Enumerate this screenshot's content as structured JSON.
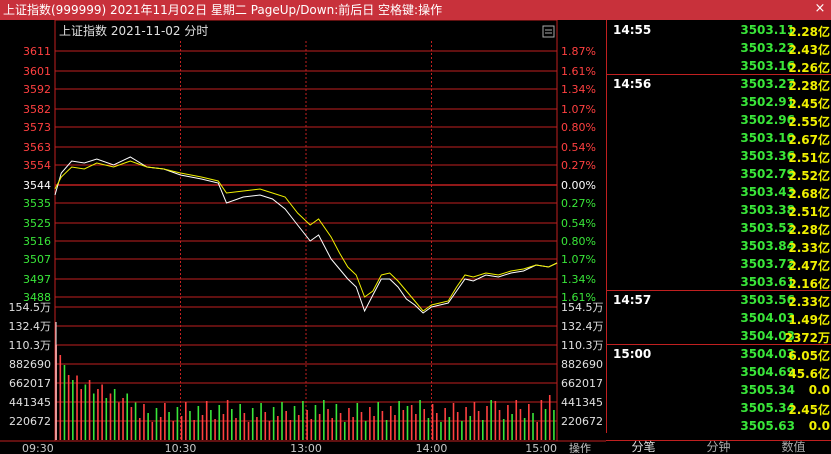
{
  "window": {
    "title": "上证指数(999999) 2021年11月02日 星期二 PageUp/Down:前后日 空格键:操作",
    "close": "×"
  },
  "chart": {
    "info": "上证指数   2021-11-02 分时"
  },
  "chart_data": {
    "type": "line",
    "title": "上证指数   2021-11-02 分时",
    "base_price": 3544,
    "price_ticks": [
      "3611",
      "3601",
      "3592",
      "3582",
      "3573",
      "3563",
      "3554",
      "3544",
      "3535",
      "3525",
      "3516",
      "3507",
      "3497",
      "3488"
    ],
    "price_tick_values": [
      3611,
      3601,
      3592,
      3582,
      3573,
      3563,
      3554,
      3544,
      3535,
      3525,
      3516,
      3507,
      3497,
      3488
    ],
    "pct_ticks": [
      "1.87%",
      "1.61%",
      "1.34%",
      "1.07%",
      "0.80%",
      "0.54%",
      "0.27%",
      "0.00%",
      "0.27%",
      "0.54%",
      "0.80%",
      "1.07%",
      "1.34%",
      "1.61%"
    ],
    "ylim": [
      3483,
      3616
    ],
    "volume_ticks": [
      "154.5万",
      "132.4万",
      "110.3万",
      "882690",
      "662017",
      "441345",
      "220672"
    ],
    "volume_ylim": [
      0,
      1545000
    ],
    "x_labels": [
      "09:30",
      "10:30",
      "13:00",
      "14:00",
      "15:00"
    ],
    "total_minutes": 240,
    "series": [
      {
        "name": "",
        "color": "#ffffff",
        "points": [
          [
            0,
            3539
          ],
          [
            3,
            3550
          ],
          [
            8,
            3556
          ],
          [
            14,
            3555
          ],
          [
            20,
            3557
          ],
          [
            28,
            3554
          ],
          [
            36,
            3558
          ],
          [
            44,
            3553
          ],
          [
            52,
            3552
          ],
          [
            60,
            3549
          ],
          [
            70,
            3547
          ],
          [
            78,
            3545
          ],
          [
            82,
            3535
          ],
          [
            90,
            3538
          ],
          [
            98,
            3539
          ],
          [
            104,
            3537
          ],
          [
            110,
            3532
          ],
          [
            116,
            3524
          ],
          [
            122,
            3516
          ],
          [
            126,
            3519
          ],
          [
            132,
            3507
          ],
          [
            136,
            3502
          ],
          [
            140,
            3497
          ],
          [
            144,
            3493
          ],
          [
            148,
            3481
          ],
          [
            152,
            3489
          ],
          [
            156,
            3497
          ],
          [
            160,
            3497
          ],
          [
            164,
            3493
          ],
          [
            168,
            3487
          ],
          [
            172,
            3484
          ],
          [
            176,
            3480
          ],
          [
            180,
            3483
          ],
          [
            184,
            3484
          ],
          [
            188,
            3485
          ],
          [
            192,
            3491
          ],
          [
            196,
            3497
          ],
          [
            200,
            3496
          ],
          [
            206,
            3499
          ],
          [
            212,
            3498
          ],
          [
            218,
            3500
          ],
          [
            224,
            3501
          ],
          [
            230,
            3504
          ],
          [
            236,
            3503
          ],
          [
            240,
            3505
          ]
        ]
      },
      {
        "name": "",
        "color": "#f0f000",
        "points": [
          [
            0,
            3542
          ],
          [
            3,
            3548
          ],
          [
            8,
            3553
          ],
          [
            14,
            3552
          ],
          [
            20,
            3555
          ],
          [
            28,
            3553
          ],
          [
            36,
            3556
          ],
          [
            44,
            3553
          ],
          [
            52,
            3552
          ],
          [
            60,
            3550
          ],
          [
            70,
            3548
          ],
          [
            78,
            3546
          ],
          [
            82,
            3540
          ],
          [
            90,
            3541
          ],
          [
            98,
            3542
          ],
          [
            104,
            3540
          ],
          [
            110,
            3538
          ],
          [
            116,
            3530
          ],
          [
            122,
            3524
          ],
          [
            126,
            3527
          ],
          [
            132,
            3518
          ],
          [
            136,
            3510
          ],
          [
            140,
            3503
          ],
          [
            144,
            3499
          ],
          [
            148,
            3488
          ],
          [
            152,
            3491
          ],
          [
            156,
            3499
          ],
          [
            160,
            3500
          ],
          [
            164,
            3496
          ],
          [
            168,
            3491
          ],
          [
            172,
            3486
          ],
          [
            176,
            3481
          ],
          [
            180,
            3484
          ],
          [
            184,
            3485
          ],
          [
            188,
            3486
          ],
          [
            192,
            3493
          ],
          [
            196,
            3499
          ],
          [
            200,
            3498
          ],
          [
            206,
            3500
          ],
          [
            212,
            3499
          ],
          [
            218,
            3501
          ],
          [
            224,
            3502
          ],
          [
            230,
            3504
          ],
          [
            236,
            3503
          ],
          [
            240,
            3505
          ]
        ]
      }
    ]
  },
  "ticks": [
    {
      "time": "14:55",
      "price": "3503.11",
      "vol": "2.28亿"
    },
    {
      "time": "",
      "price": "3503.22",
      "vol": "2.43亿"
    },
    {
      "time": "",
      "price": "3503.16",
      "vol": "2.26亿"
    },
    {
      "time": "14:56",
      "price": "3503.27",
      "vol": "2.28亿"
    },
    {
      "time": "",
      "price": "3502.91",
      "vol": "2.45亿"
    },
    {
      "time": "",
      "price": "3502.96",
      "vol": "2.55亿"
    },
    {
      "time": "",
      "price": "3503.10",
      "vol": "2.67亿"
    },
    {
      "time": "",
      "price": "3503.36",
      "vol": "2.51亿"
    },
    {
      "time": "",
      "price": "3502.79",
      "vol": "2.52亿"
    },
    {
      "time": "",
      "price": "3503.43",
      "vol": "2.68亿"
    },
    {
      "time": "",
      "price": "3503.38",
      "vol": "2.51亿"
    },
    {
      "time": "",
      "price": "3503.52",
      "vol": "2.28亿"
    },
    {
      "time": "",
      "price": "3503.84",
      "vol": "2.33亿"
    },
    {
      "time": "",
      "price": "3503.72",
      "vol": "2.47亿"
    },
    {
      "time": "",
      "price": "3503.61",
      "vol": "2.16亿"
    },
    {
      "time": "14:57",
      "price": "3503.56",
      "vol": "2.33亿"
    },
    {
      "time": "",
      "price": "3504.03",
      "vol": "1.49亿"
    },
    {
      "time": "",
      "price": "3504.03",
      "vol": "2372万"
    },
    {
      "time": "15:00",
      "price": "3504.03",
      "vol": "6.05亿"
    },
    {
      "time": "",
      "price": "3504.69",
      "vol": "45.6亿"
    },
    {
      "time": "",
      "price": "3505.34",
      "vol": "0.0"
    },
    {
      "time": "",
      "price": "3505.34",
      "vol": "2.45亿"
    },
    {
      "time": "",
      "price": "3505.63",
      "vol": "0.0"
    }
  ],
  "bottom": {
    "action": "操作",
    "tabs": [
      "分笔",
      "分钟",
      "数值"
    ]
  },
  "colors": {
    "grid": "#c02020",
    "price_up": "#ff4040",
    "price_down": "#39e639",
    "volume_up": "#ff4040",
    "volume_down": "#39e639"
  }
}
